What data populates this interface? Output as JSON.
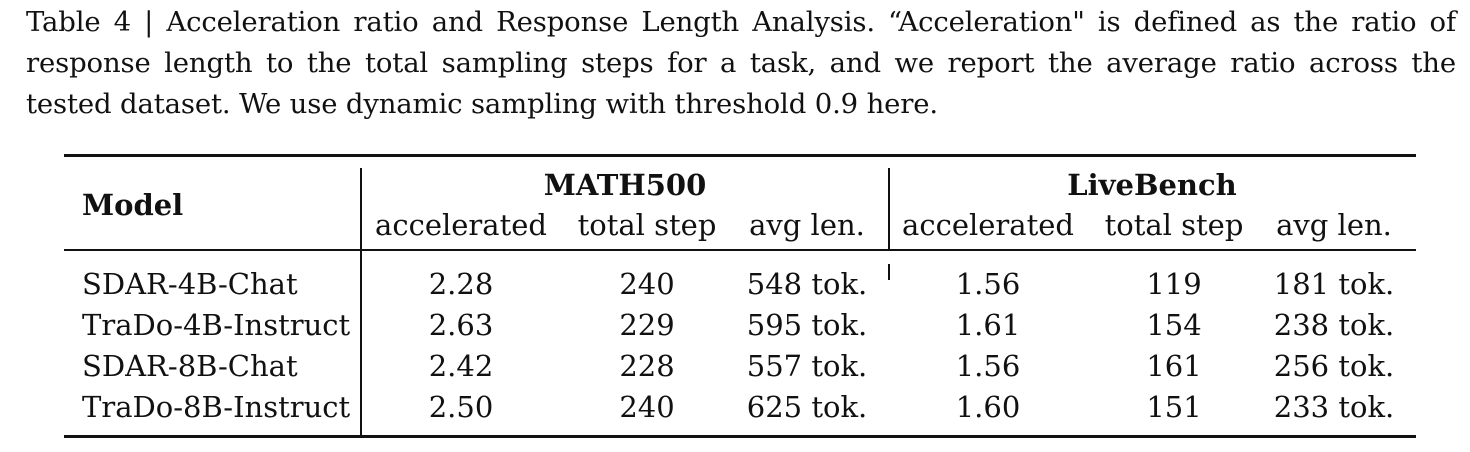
{
  "caption": {
    "text": "Table 4 | Acceleration ratio and Response Length Analysis. “Acceleration\" is defined as the ratio of response length to the total sampling steps for a task, and we report the average ratio across the tested dataset. We use dynamic sampling with threshold 0.9 here."
  },
  "table": {
    "model_header": "Model",
    "groups": [
      "MATH500",
      "LiveBench"
    ],
    "subheaders": [
      "accelerated",
      "total step",
      "avg len.",
      "accelerated",
      "total step",
      "avg len."
    ],
    "rows": [
      {
        "model": "SDAR-4B-Chat",
        "cells": [
          "2.28",
          "240",
          "548 tok.",
          "1.56",
          "119",
          "181 tok."
        ]
      },
      {
        "model": "TraDo-4B-Instruct",
        "cells": [
          "2.63",
          "229",
          "595 tok.",
          "1.61",
          "154",
          "238 tok."
        ]
      },
      {
        "model": "SDAR-8B-Chat",
        "cells": [
          "2.42",
          "228",
          "557 tok.",
          "1.56",
          "161",
          "256 tok."
        ]
      },
      {
        "model": "TraDo-8B-Instruct",
        "cells": [
          "2.50",
          "240",
          "625 tok.",
          "1.60",
          "151",
          "233 tok."
        ]
      }
    ]
  }
}
